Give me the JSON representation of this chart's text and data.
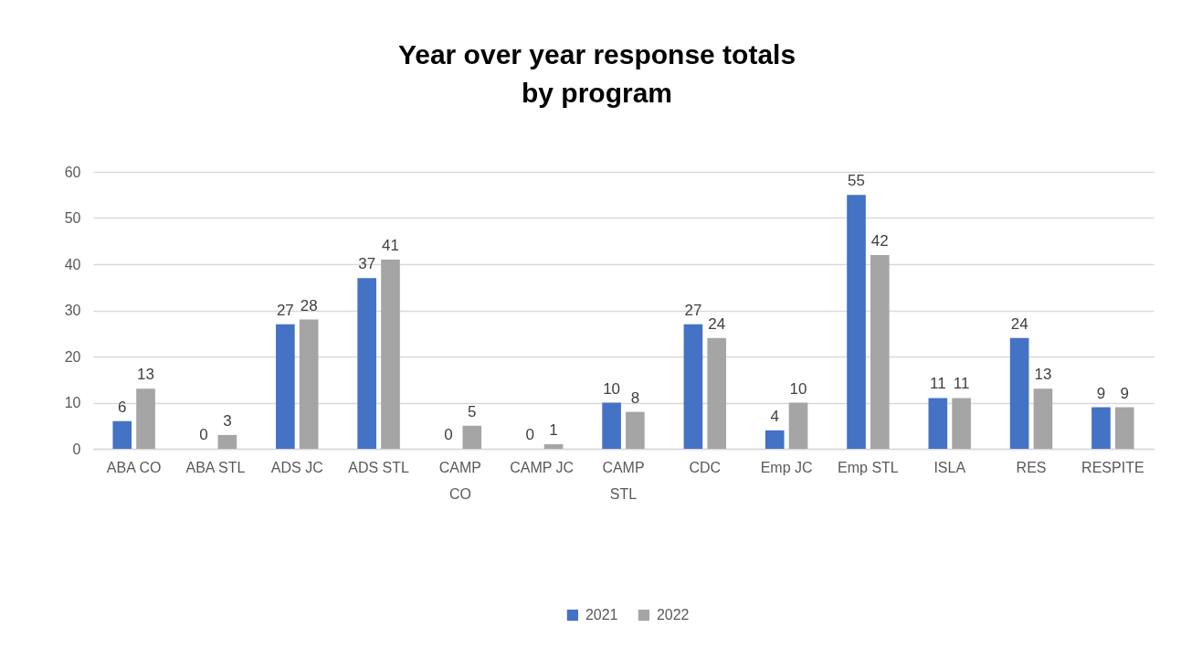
{
  "chart_data": {
    "type": "bar",
    "title": "Year over year response totals by program",
    "categories": [
      "ABA CO",
      "ABA STL",
      "ADS JC",
      "ADS STL",
      "CAMP CO",
      "CAMP JC",
      "CAMP STL",
      "CDC",
      "Emp JC",
      "Emp STL",
      "ISLA",
      "RES",
      "RESPITE"
    ],
    "series": [
      {
        "name": "2021",
        "color": "#4472c4",
        "values": [
          6,
          0,
          27,
          37,
          0,
          0,
          10,
          27,
          4,
          55,
          11,
          24,
          9
        ]
      },
      {
        "name": "2022",
        "color": "#a5a5a5",
        "values": [
          13,
          3,
          28,
          41,
          5,
          1,
          8,
          24,
          10,
          42,
          11,
          13,
          9
        ]
      }
    ],
    "ylim": [
      0,
      60
    ],
    "yticks": [
      0,
      10,
      20,
      30,
      40,
      50,
      60
    ],
    "grid": "y",
    "legend": "bottom",
    "data_labels": true
  }
}
